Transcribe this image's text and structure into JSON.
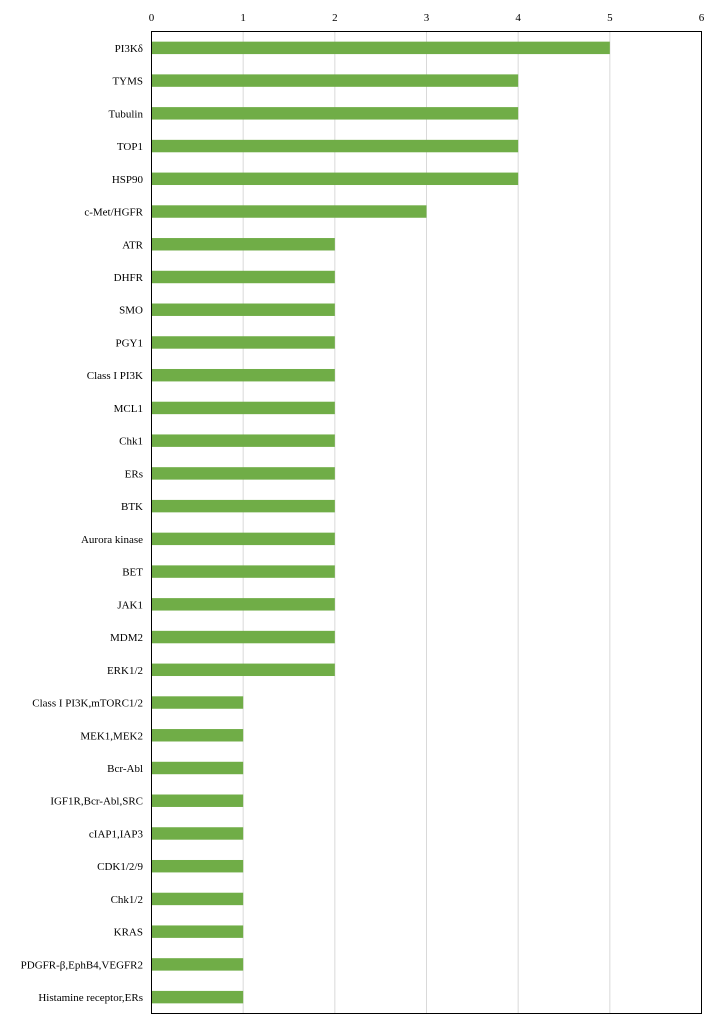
{
  "chart_data": {
    "type": "bar",
    "orientation": "horizontal",
    "categories": [
      "PI3Kδ",
      "TYMS",
      "Tubulin",
      "TOP1",
      "HSP90",
      "c-Met/HGFR",
      "ATR",
      "DHFR",
      "SMO",
      "PGY1",
      "Class I PI3K",
      "MCL1",
      "Chk1",
      "ERs",
      "BTK",
      "Aurora kinase",
      "BET",
      "JAK1",
      "MDM2",
      "ERK1/2",
      "Class I PI3K,mTORC1/2",
      "MEK1,MEK2",
      "Bcr-Abl",
      "IGF1R,Bcr-Abl,SRC",
      "cIAP1,IAP3",
      "CDK1/2/9",
      "Chk1/2",
      "KRAS",
      "PDGFR-β,EphB4,VEGFR2",
      "Histamine receptor,ERs"
    ],
    "values": [
      5,
      4,
      4,
      4,
      4,
      3,
      2,
      2,
      2,
      2,
      2,
      2,
      2,
      2,
      2,
      2,
      2,
      2,
      2,
      2,
      1,
      1,
      1,
      1,
      1,
      1,
      1,
      1,
      1,
      1
    ],
    "xlim": [
      0,
      6
    ],
    "xticks": [
      "0",
      "1",
      "2",
      "3",
      "4",
      "5",
      "6"
    ],
    "x_axis_position": "top",
    "grid": true,
    "bar_color": "#70ad47",
    "grid_color": "#d9d9d9",
    "title": "",
    "xlabel": "",
    "ylabel": ""
  }
}
